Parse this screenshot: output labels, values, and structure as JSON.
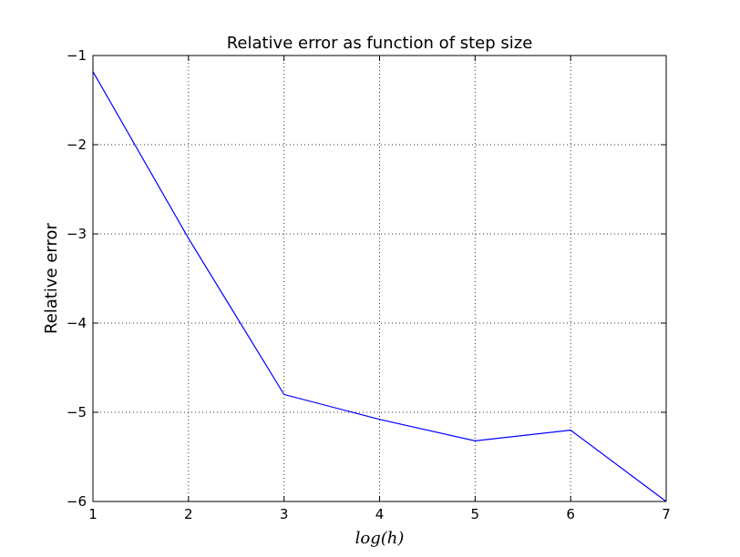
{
  "chart_data": {
    "type": "line",
    "title": "Relative error as function of step size",
    "xlabel": "log(h)",
    "ylabel": "Relative error",
    "xlim": [
      1,
      7
    ],
    "ylim": [
      -6,
      -1
    ],
    "xticks": [
      1,
      2,
      3,
      4,
      5,
      6,
      7
    ],
    "yticks": [
      -1,
      -2,
      -3,
      -4,
      -5,
      -6
    ],
    "xtick_labels": [
      "1",
      "2",
      "3",
      "4",
      "5",
      "6",
      "7"
    ],
    "ytick_labels": [
      "−1",
      "−2",
      "−3",
      "−4",
      "−5",
      "−6"
    ],
    "grid": true,
    "series": [
      {
        "color": "#0000ff",
        "x": [
          1,
          2,
          3,
          4,
          5,
          6,
          7
        ],
        "y": [
          -1.18,
          -3.05,
          -4.8,
          -5.08,
          -5.32,
          -5.2,
          -6.0
        ]
      }
    ]
  }
}
